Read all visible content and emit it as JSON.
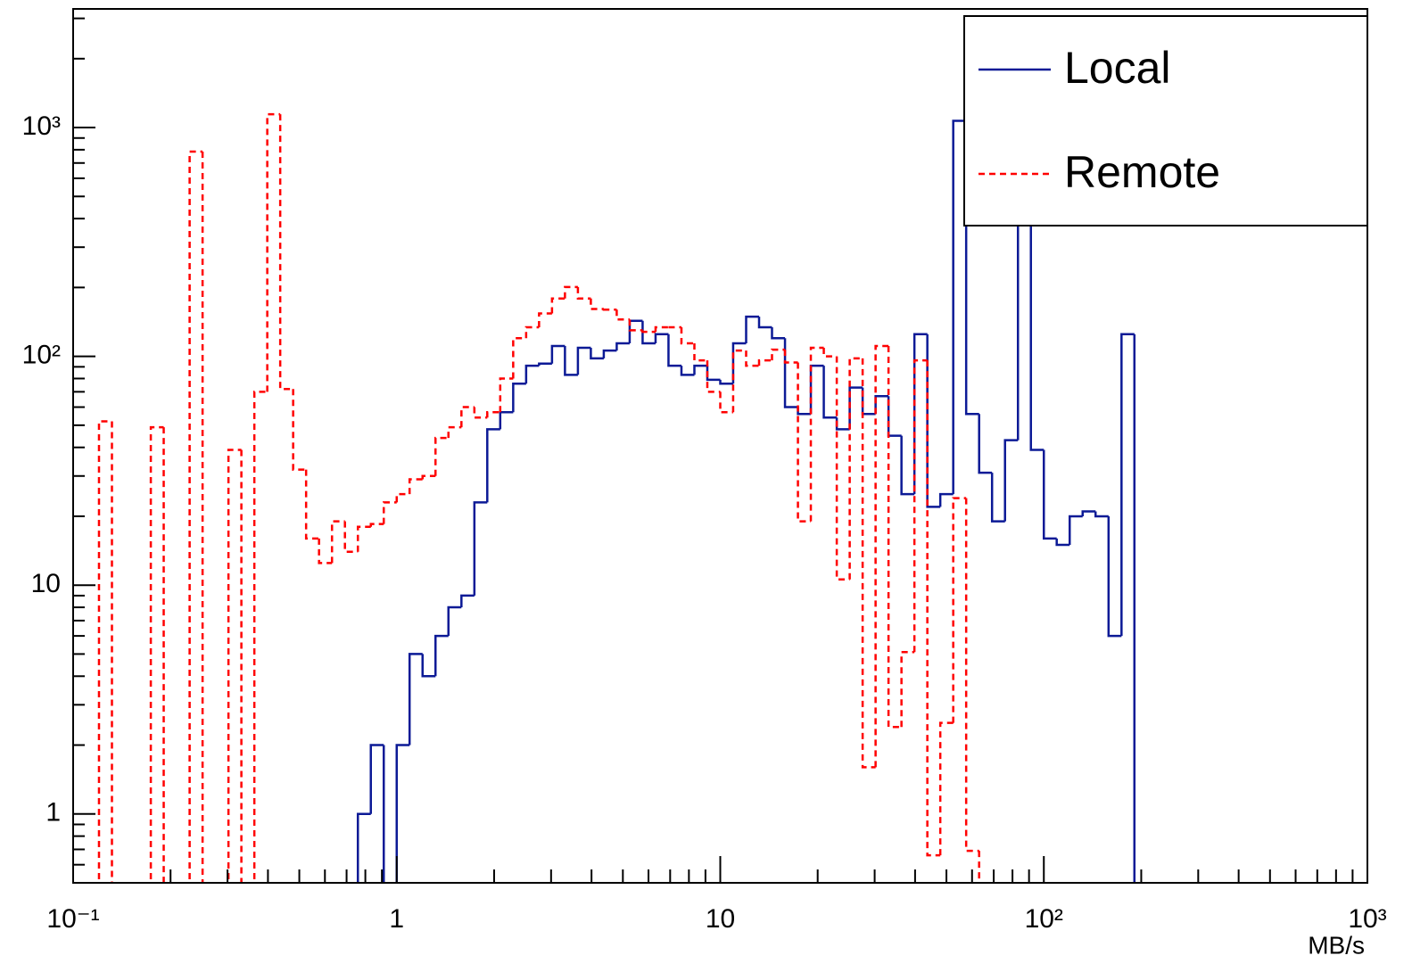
{
  "chart_data": {
    "type": "histogram",
    "x_label": "MB/s",
    "log_x": true,
    "log_y": true,
    "legend": "top-right",
    "xlim": [
      0.1,
      1000
    ],
    "ylim": [
      0.5,
      3300
    ],
    "xticks": [
      {
        "value": 0.1,
        "label": "10⁻¹"
      },
      1,
      10,
      {
        "value": 100,
        "label": "10²"
      },
      {
        "value": 1000,
        "label": "10³"
      }
    ],
    "yticks": [
      1,
      10,
      {
        "value": 100,
        "label": "10²"
      },
      {
        "value": 1000,
        "label": "10³"
      }
    ],
    "xminorticks": [
      0.2,
      0.3,
      0.4,
      0.5,
      0.6,
      0.7,
      0.8,
      0.9,
      2,
      3,
      4,
      5,
      6,
      7,
      8,
      9,
      20,
      30,
      40,
      50,
      60,
      70,
      80,
      90,
      200,
      300,
      400,
      500,
      600,
      700,
      800,
      900
    ],
    "yminorticks": [
      0.6,
      0.7,
      0.8,
      0.9,
      2,
      3,
      4,
      5,
      6,
      7,
      8,
      9,
      20,
      30,
      40,
      50,
      60,
      70,
      80,
      90,
      200,
      300,
      400,
      500,
      600,
      700,
      800,
      900,
      2000,
      3000
    ],
    "bins": [
      0.1,
      0.1096,
      0.1202,
      0.1318,
      0.1445,
      0.1585,
      0.1738,
      0.1905,
      0.2089,
      0.2291,
      0.2512,
      0.2754,
      0.302,
      0.3311,
      0.3631,
      0.3981,
      0.4365,
      0.4786,
      0.5248,
      0.5754,
      0.631,
      0.6918,
      0.7586,
      0.8318,
      0.912,
      1,
      1.096,
      1.202,
      1.318,
      1.445,
      1.585,
      1.738,
      1.905,
      2.089,
      2.291,
      2.512,
      2.754,
      3.02,
      3.311,
      3.631,
      3.981,
      4.365,
      4.786,
      5.248,
      5.754,
      6.31,
      6.918,
      7.586,
      8.318,
      9.12,
      10,
      10.96,
      12.02,
      13.18,
      14.45,
      15.85,
      17.38,
      19.05,
      20.89,
      22.91,
      25.12,
      27.54,
      30.2,
      33.11,
      36.31,
      39.81,
      43.65,
      47.86,
      52.48,
      57.54,
      63.1,
      69.18,
      75.86,
      83.18,
      91.2,
      100,
      109.6,
      120.2,
      131.8,
      144.5,
      158.5,
      173.8,
      190.5,
      208.9,
      229.1,
      251.2,
      275.4,
      302,
      331.1,
      363.1,
      398.1,
      436.5,
      478.6,
      524.8,
      575.4,
      631,
      691.8,
      758.6,
      831.8,
      912,
      1000
    ],
    "series": [
      {
        "name": "Local",
        "color": "#0c1a96",
        "dash": false,
        "values": [
          0,
          0,
          0,
          0,
          0,
          0,
          0,
          0,
          0,
          0,
          0,
          0,
          0,
          0,
          0,
          0,
          0,
          0,
          0,
          0,
          0,
          0,
          1,
          2,
          0,
          2,
          5,
          4,
          6,
          8,
          9,
          23,
          48,
          57,
          76,
          91,
          93,
          111,
          83,
          109,
          98,
          106,
          114,
          143,
          114,
          125,
          91,
          83,
          91,
          79,
          76,
          114,
          149,
          134,
          120,
          60,
          56,
          91,
          54,
          48,
          73,
          56,
          67,
          45,
          25,
          125,
          22,
          25,
          1070,
          56,
          31,
          19,
          43,
          450,
          39,
          16,
          15,
          20,
          21,
          20,
          6,
          125,
          0,
          0,
          0,
          0,
          0,
          0,
          0,
          0,
          0,
          0,
          0,
          0,
          0,
          0,
          0,
          0,
          0,
          0
        ]
      },
      {
        "name": "Remote",
        "color": "#ff0000",
        "dash": true,
        "values": [
          0,
          0,
          52,
          0,
          0,
          0,
          49,
          0,
          0,
          785,
          0,
          0,
          39,
          0,
          70,
          1143,
          72,
          32,
          16,
          12.5,
          19,
          14,
          18,
          18.5,
          23,
          25,
          29,
          30,
          44,
          49,
          60,
          54,
          57,
          80,
          120,
          134,
          154,
          179,
          201,
          179,
          161,
          160,
          145,
          130,
          128,
          134,
          134,
          114,
          96,
          70,
          57,
          106,
          91,
          96,
          107,
          94,
          19,
          109,
          100,
          10.6,
          98,
          1.6,
          111,
          2.4,
          5.1,
          96,
          0.66,
          2.5,
          24,
          0.69,
          0,
          0,
          0,
          0,
          0,
          0,
          0,
          0,
          0,
          0,
          0,
          0,
          0,
          0,
          0,
          0,
          0,
          0,
          0,
          0,
          0,
          0,
          0,
          0,
          0,
          0,
          0,
          0,
          0,
          0
        ]
      }
    ]
  }
}
